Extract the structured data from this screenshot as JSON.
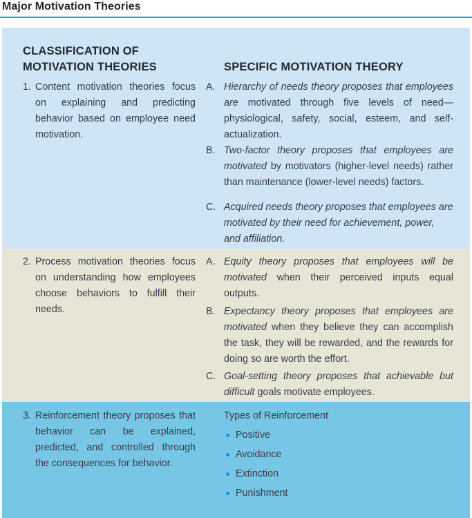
{
  "title": "Major Motivation Theories",
  "headers": {
    "left_line1": "CLASSIFICATION OF",
    "left_line2": "MOTIVATION THEORIES",
    "right": "SPECIFIC MOTIVATION THEORY"
  },
  "rows": [
    {
      "number": "1.",
      "text": "Content motivation theories focus on explaining and predicting behavior based on employee need motivation.",
      "items": [
        {
          "letter": "A.",
          "italic": "Hierarchy of needs theory proposes that employees are",
          "rest": " motivated through five levels of need—physiological, safety, social, esteem, and self-actualization."
        },
        {
          "letter": "B.",
          "italic": "Two-factor theory proposes that employees are motivated",
          "rest": " by motivators (higher-level needs) rather than maintenance (lower-level needs) factors."
        },
        {
          "letter": "C.",
          "italic": "Acquired needs theory proposes that employees are motivated by their need for achievement, power, and affiliation.",
          "rest": ""
        }
      ]
    },
    {
      "number": "2.",
      "text": "Process motivation theories focus on understanding how employees choose behaviors to fulfill their needs.",
      "items": [
        {
          "letter": "A.",
          "italic": "Equity theory proposes that employees will be motivated",
          "rest": " when their perceived inputs equal outputs."
        },
        {
          "letter": "B.",
          "italic": "Expectancy theory proposes that employees are motivated",
          "rest": " when they believe they can accomplish the task, they will be rewarded, and the rewards for doing so are worth the effort."
        },
        {
          "letter": "C.",
          "italic": "Goal-setting theory proposes that achievable but difficult",
          "rest": " goals motivate employees."
        }
      ]
    },
    {
      "number": "3.",
      "text": "Reinforcement theory proposes that behavior can be explained, predicted, and controlled through the consequences for behavior.",
      "types_heading": "Types of Reinforcement",
      "bullets": [
        "Positive",
        "Avoidance",
        "Extinction",
        "Punishment"
      ]
    }
  ],
  "colors": {
    "rule": "#2a9fd8",
    "band1": "#cfe4f5",
    "band2": "#e7e5d5",
    "band3": "#78c6e6",
    "bullet": "#1f8fcf"
  }
}
